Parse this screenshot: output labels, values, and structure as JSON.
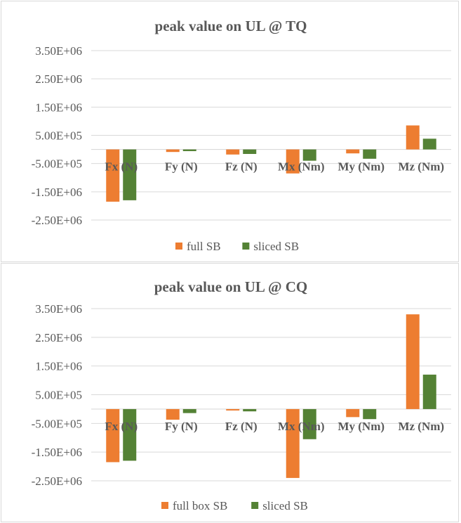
{
  "chart_data": [
    {
      "type": "bar",
      "title": "peak value on UL @ TQ",
      "xlabel": "",
      "ylabel": "",
      "categories": [
        "Fx (N)",
        "Fy (N)",
        "Fz (N)",
        "Mx (Nm)",
        "My (Nm)",
        "Mz (Nm)"
      ],
      "series": [
        {
          "name": "full SB",
          "color": "#ED7D31",
          "values": [
            -1850000,
            -90000,
            -180000,
            -850000,
            -140000,
            850000
          ]
        },
        {
          "name": "sliced SB",
          "color": "#548235",
          "values": [
            -1800000,
            -60000,
            -160000,
            -400000,
            -330000,
            380000
          ]
        }
      ],
      "yticks": [
        3500000,
        2500000,
        1500000,
        500000,
        -500000,
        -1500000,
        -2500000
      ],
      "ytick_labels": [
        "3.50E+06",
        "2.50E+06",
        "1.50E+06",
        "5.00E+05",
        "-5.00E+05",
        "-1.50E+06",
        "-2.50E+06"
      ],
      "ylim": [
        -2500000,
        3500000
      ],
      "grid": true,
      "legend_position": "bottom"
    },
    {
      "type": "bar",
      "title": "peak value on UL @ CQ",
      "xlabel": "",
      "ylabel": "",
      "categories": [
        "Fx (N)",
        "Fy (N)",
        "Fz (N)",
        "Mx (Nm)",
        "My (Nm)",
        "Mz (Nm)"
      ],
      "series": [
        {
          "name": "full box SB",
          "color": "#ED7D31",
          "values": [
            -1850000,
            -370000,
            -50000,
            -2400000,
            -280000,
            3300000
          ]
        },
        {
          "name": "sliced SB",
          "color": "#548235",
          "values": [
            -1800000,
            -140000,
            -80000,
            -1050000,
            -350000,
            1200000
          ]
        }
      ],
      "yticks": [
        3500000,
        2500000,
        1500000,
        500000,
        -500000,
        -1500000,
        -2500000
      ],
      "ytick_labels": [
        "3.50E+06",
        "2.50E+06",
        "1.50E+06",
        "5.00E+05",
        "-5.00E+05",
        "-1.50E+06",
        "-2.50E+06"
      ],
      "ylim": [
        -2500000,
        3500000
      ],
      "grid": true,
      "legend_position": "bottom"
    }
  ]
}
